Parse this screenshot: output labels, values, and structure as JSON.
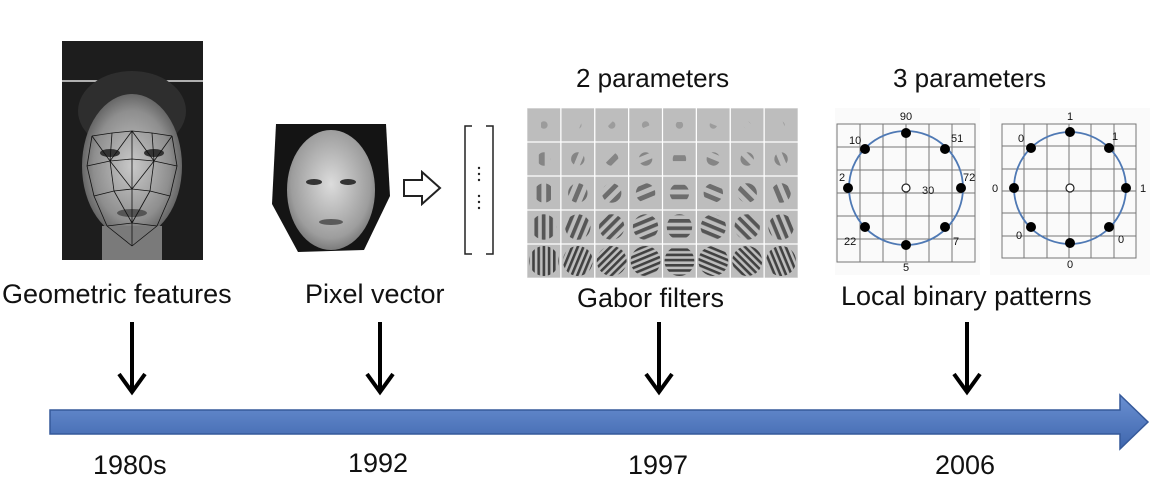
{
  "eras": [
    {
      "label": "Geometric features",
      "year": "1980s"
    },
    {
      "label": "Pixel vector",
      "year": "1992"
    },
    {
      "label": "Gabor filters",
      "year": "1997",
      "params": "2 parameters"
    },
    {
      "label": "Local binary patterns",
      "year": "2006",
      "params": "3 parameters"
    }
  ],
  "lbp": {
    "grayscale": {
      "top": "90",
      "top_right": "51",
      "right": "72",
      "bottom_right": "7",
      "bottom": "5",
      "bottom_left": "22",
      "left": "2",
      "top_left": "10",
      "center": "30"
    },
    "binary": {
      "top": "1",
      "top_right": "1",
      "right": "1",
      "bottom_right": "0",
      "bottom": "0",
      "bottom_left": "0",
      "left": "0",
      "top_left": "0"
    }
  },
  "colors": {
    "timeline": "#4a74c0",
    "circle": "#4f79b4"
  }
}
